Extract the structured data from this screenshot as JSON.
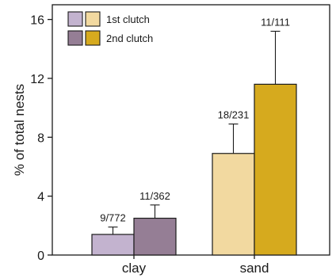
{
  "chart_data": {
    "type": "bar",
    "categories": [
      "clay",
      "sand"
    ],
    "series": [
      {
        "name": "1st clutch",
        "values": [
          1.4,
          6.9
        ],
        "errors": [
          0.5,
          2.0
        ],
        "labels": [
          "9/772",
          "18/231"
        ],
        "colors": [
          "#c3b3cf",
          "#f2d9a0"
        ]
      },
      {
        "name": "2nd clutch",
        "values": [
          2.5,
          11.6
        ],
        "errors": [
          0.9,
          3.6
        ],
        "labels": [
          "11/362",
          "11/111"
        ],
        "colors": [
          "#957e95",
          "#d6aa1e"
        ]
      }
    ],
    "ylabel": "% of total nests",
    "xlabel": "",
    "ylim": [
      0,
      17
    ],
    "yticks": [
      0,
      4,
      8,
      12,
      16
    ],
    "legend": {
      "position": "top-left",
      "entries": [
        "1st clutch",
        "2nd clutch"
      ]
    },
    "grid": false
  }
}
